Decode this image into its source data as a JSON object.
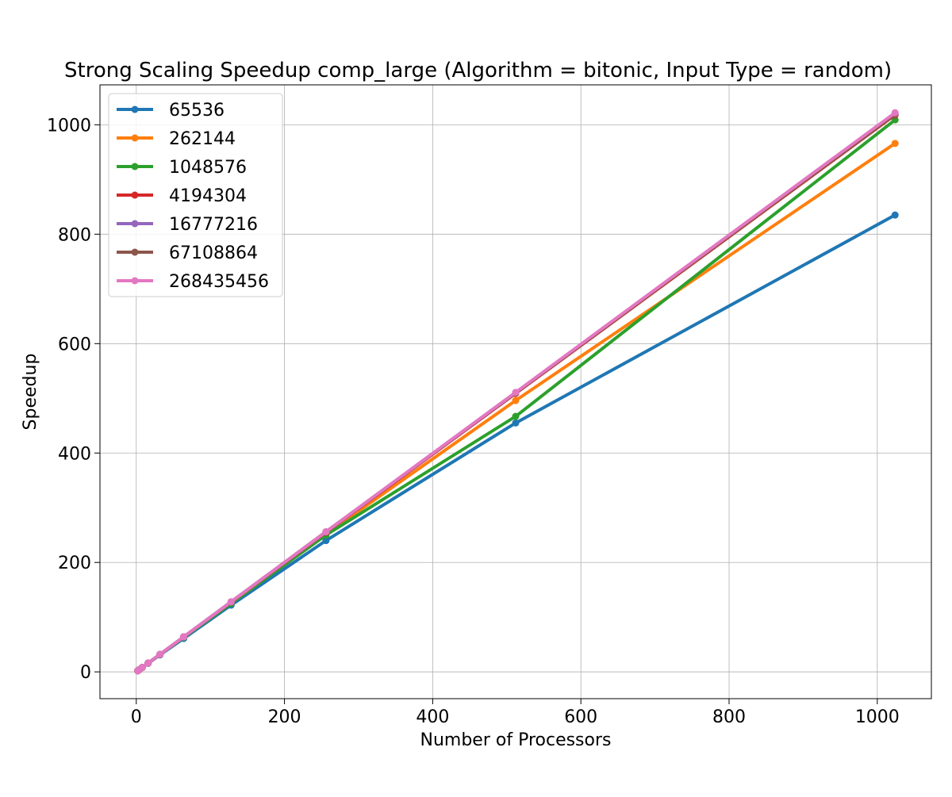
{
  "chart_data": {
    "type": "line",
    "title": "Strong Scaling Speedup comp_large (Algorithm = bitonic, Input Type = random)",
    "xlabel": "Number of Processors",
    "ylabel": "Speedup",
    "xlim": [
      -49,
      1073
    ],
    "ylim": [
      -49,
      1073
    ],
    "xticks": [
      0,
      200,
      400,
      600,
      800,
      1000
    ],
    "yticks": [
      0,
      200,
      400,
      600,
      800,
      1000
    ],
    "grid": true,
    "legend_position": "top-left",
    "x": [
      2,
      4,
      8,
      16,
      32,
      64,
      128,
      256,
      512,
      1024
    ],
    "series": [
      {
        "name": "65536",
        "color": "#1f77b4",
        "values": [
          2,
          3.9,
          7.8,
          15.5,
          31,
          61,
          122,
          240,
          455,
          835
        ]
      },
      {
        "name": "262144",
        "color": "#ff7f0e",
        "values": [
          2,
          4,
          8,
          16,
          31.8,
          63.5,
          126,
          252,
          496,
          966
        ]
      },
      {
        "name": "1048576",
        "color": "#2ca02c",
        "values": [
          2,
          4,
          8,
          16,
          31.7,
          63,
          125,
          250,
          467,
          1009
        ]
      },
      {
        "name": "4194304",
        "color": "#d62728",
        "values": [
          2,
          4,
          8,
          16,
          32,
          64,
          127.5,
          255,
          509,
          1018
        ]
      },
      {
        "name": "16777216",
        "color": "#9467bd",
        "values": [
          2,
          4,
          8,
          16,
          32,
          64,
          128,
          256,
          510,
          1020
        ]
      },
      {
        "name": "67108864",
        "color": "#8c564b",
        "values": [
          2,
          4,
          8,
          16,
          32,
          64,
          128,
          256,
          510,
          1019
        ]
      },
      {
        "name": "268435456",
        "color": "#e377c2",
        "values": [
          2,
          4,
          8,
          16,
          32,
          64,
          128,
          256,
          511,
          1022
        ]
      }
    ]
  }
}
